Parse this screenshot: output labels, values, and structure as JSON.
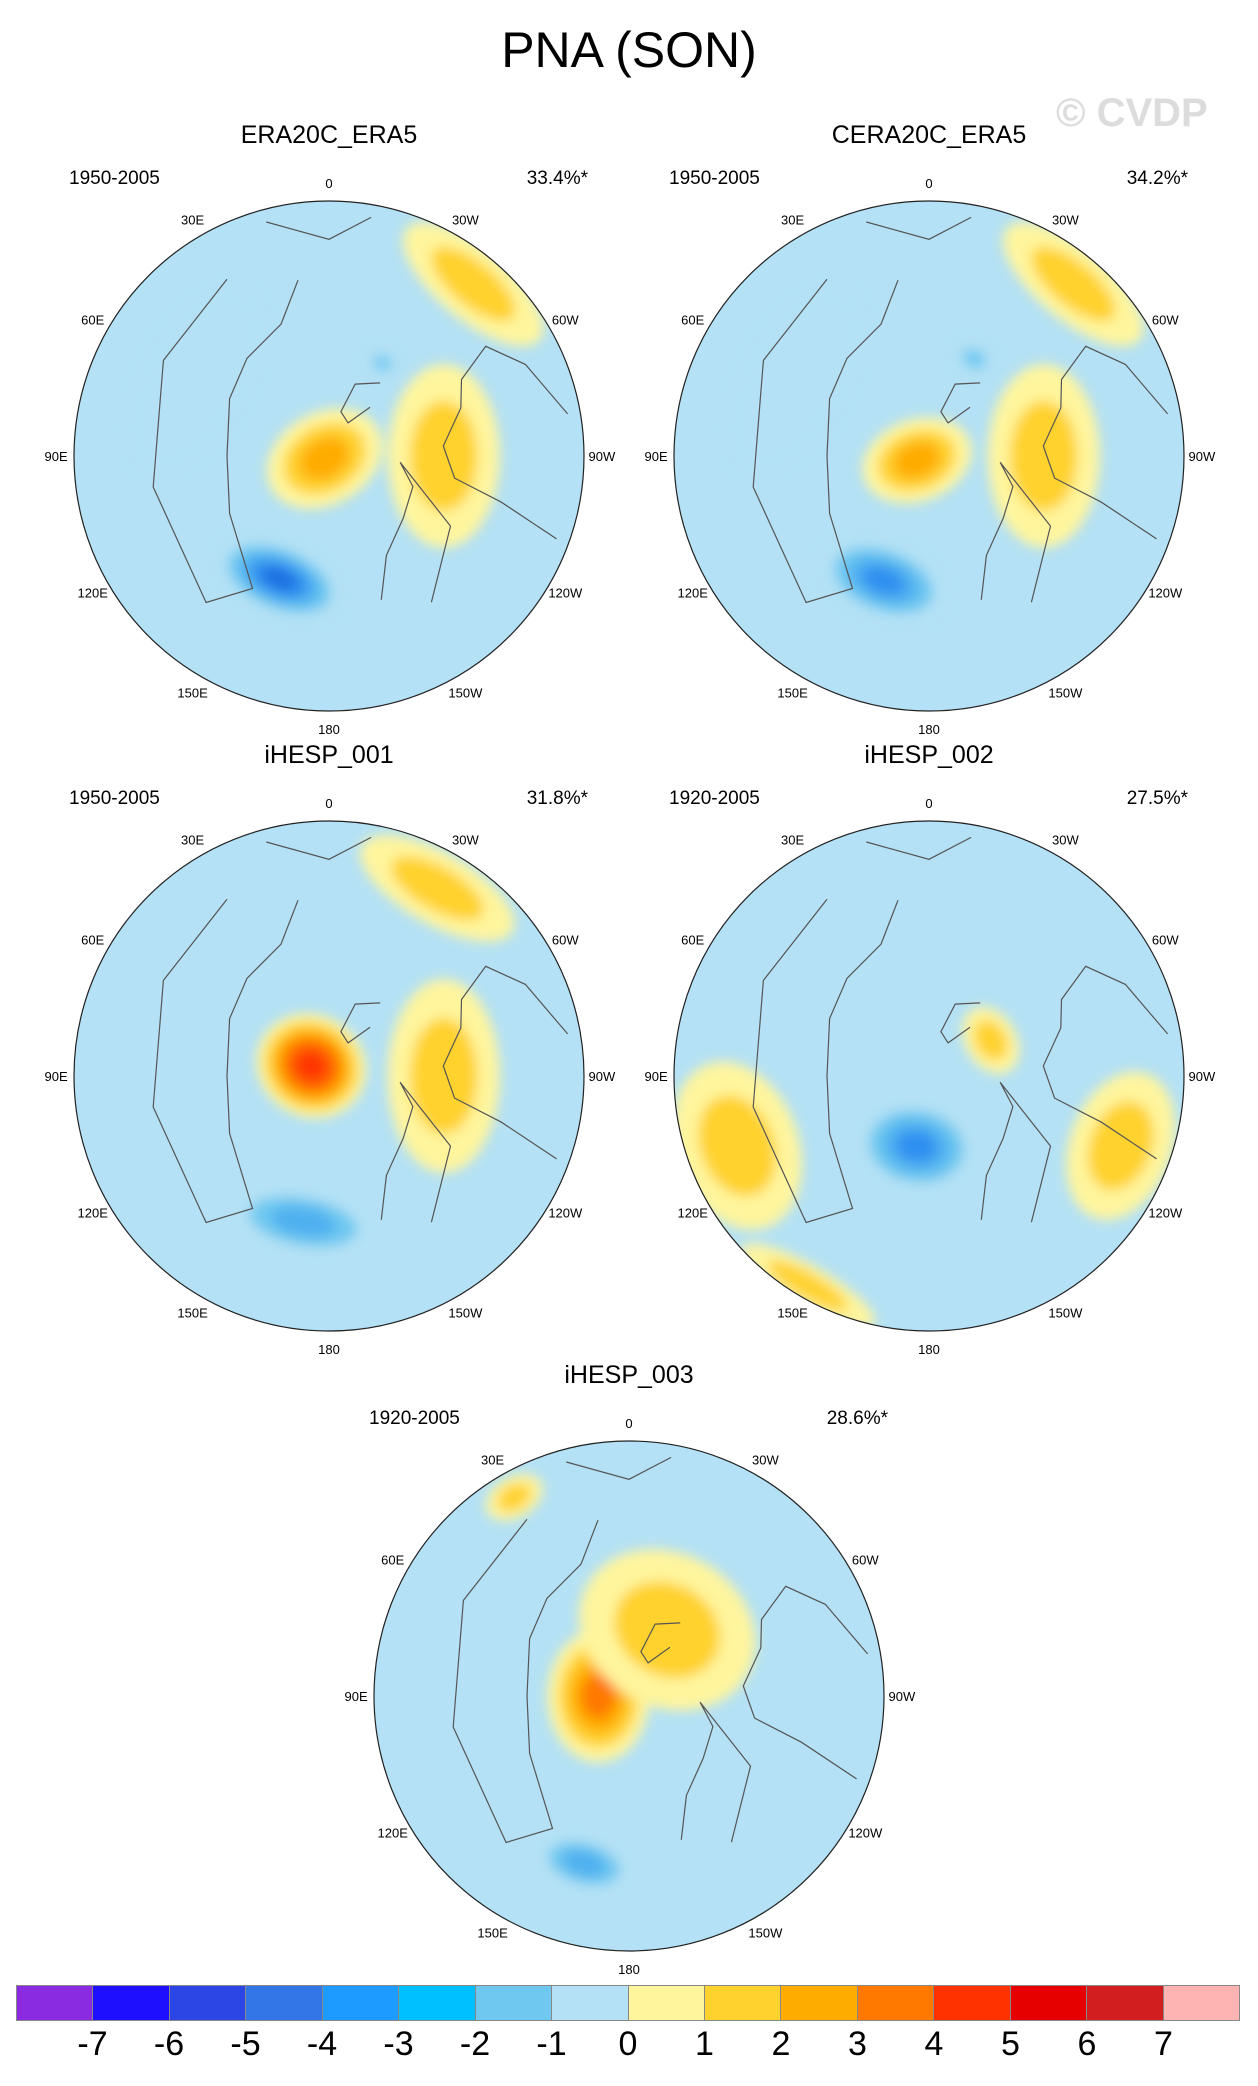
{
  "title": "PNA (SON)",
  "watermark": "© CVDP",
  "lon_labels": [
    "180",
    "150E",
    "120E",
    "90E",
    "60E",
    "30E",
    "0",
    "30W",
    "60W",
    "90W",
    "120W",
    "150W"
  ],
  "panels": [
    {
      "name": "ERA20C_ERA5",
      "period": "1950-2005",
      "pct": "33.4%*",
      "fields": [
        {
          "kind": "low",
          "lon": 158,
          "r": 0.52,
          "strength": 4,
          "w": 0.26,
          "h": 0.14
        },
        {
          "kind": "high",
          "lon": 120,
          "r": 0.02,
          "strength": 2,
          "w": 0.18,
          "h": 0.24
        },
        {
          "kind": "high",
          "lon": 270,
          "r": 0.45,
          "strength": 1,
          "w": 0.36,
          "h": 0.22
        },
        {
          "kind": "high",
          "lon": 320,
          "r": 0.88,
          "strength": 1,
          "w": 0.34,
          "h": 0.14
        },
        {
          "kind": "low",
          "lon": 330,
          "r": 0.42,
          "strength": 1,
          "w": 0.06,
          "h": 0.05
        },
        {
          "kind": "low",
          "lon": 60,
          "r": 0.6,
          "strength": 0,
          "w": 0.4,
          "h": 0.2
        }
      ]
    },
    {
      "name": "CERA20C_ERA5",
      "period": "1950-2005",
      "pct": "34.2%*",
      "fields": [
        {
          "kind": "low",
          "lon": 160,
          "r": 0.52,
          "strength": 3,
          "w": 0.26,
          "h": 0.15
        },
        {
          "kind": "high",
          "lon": 110,
          "r": 0.05,
          "strength": 2,
          "w": 0.16,
          "h": 0.22
        },
        {
          "kind": "high",
          "lon": 270,
          "r": 0.45,
          "strength": 1,
          "w": 0.36,
          "h": 0.22
        },
        {
          "kind": "high",
          "lon": 320,
          "r": 0.88,
          "strength": 1,
          "w": 0.34,
          "h": 0.14
        },
        {
          "kind": "low",
          "lon": 335,
          "r": 0.42,
          "strength": 1,
          "w": 0.08,
          "h": 0.06
        },
        {
          "kind": "low",
          "lon": 60,
          "r": 0.6,
          "strength": 0,
          "w": 0.4,
          "h": 0.2
        }
      ]
    },
    {
      "name": "iHESP_001",
      "period": "1950-2005",
      "pct": "31.8%*",
      "fields": [
        {
          "kind": "low",
          "lon": 170,
          "r": 0.58,
          "strength": 2,
          "w": 0.3,
          "h": 0.13
        },
        {
          "kind": "high",
          "lon": 60,
          "r": 0.08,
          "strength": 5,
          "w": 0.2,
          "h": 0.22
        },
        {
          "kind": "high",
          "lon": 270,
          "r": 0.45,
          "strength": 1,
          "w": 0.38,
          "h": 0.22
        },
        {
          "kind": "high",
          "lon": 330,
          "r": 0.85,
          "strength": 1,
          "w": 0.34,
          "h": 0.14
        },
        {
          "kind": "low",
          "lon": 60,
          "r": 0.62,
          "strength": 0,
          "w": 0.4,
          "h": 0.2
        }
      ]
    },
    {
      "name": "iHESP_002",
      "period": "1920-2005",
      "pct": "27.5%*",
      "fields": [
        {
          "kind": "low",
          "lon": 170,
          "r": 0.28,
          "strength": 3,
          "w": 0.24,
          "h": 0.18
        },
        {
          "kind": "high",
          "lon": 300,
          "r": 0.28,
          "strength": 1,
          "w": 0.14,
          "h": 0.1
        },
        {
          "kind": "high",
          "lon": 250,
          "r": 0.8,
          "strength": 1,
          "w": 0.3,
          "h": 0.2
        },
        {
          "kind": "high",
          "lon": 110,
          "r": 0.8,
          "strength": 1,
          "w": 0.34,
          "h": 0.24
        },
        {
          "kind": "high",
          "lon": 150,
          "r": 0.95,
          "strength": 1,
          "w": 0.3,
          "h": 0.08
        },
        {
          "kind": "low",
          "lon": 20,
          "r": 0.55,
          "strength": 0,
          "w": 0.4,
          "h": 0.22
        }
      ]
    },
    {
      "name": "iHESP_003",
      "period": "1920-2005",
      "pct": "28.6%*",
      "fields": [
        {
          "kind": "low",
          "lon": 165,
          "r": 0.68,
          "strength": 2,
          "w": 0.2,
          "h": 0.11
        },
        {
          "kind": "high",
          "lon": 90,
          "r": 0.12,
          "strength": 3,
          "w": 0.26,
          "h": 0.2
        },
        {
          "kind": "high",
          "lon": 330,
          "r": 0.3,
          "strength": 1,
          "w": 0.36,
          "h": 0.3
        },
        {
          "kind": "high",
          "lon": 30,
          "r": 0.9,
          "strength": 1,
          "w": 0.12,
          "h": 0.08
        }
      ]
    }
  ],
  "colorbar": {
    "labels": [
      "-7",
      "-6",
      "-5",
      "-4",
      "-3",
      "-2",
      "-1",
      "0",
      "1",
      "2",
      "3",
      "4",
      "5",
      "6",
      "7"
    ],
    "colors": [
      "#8a2be2",
      "#1e10ff",
      "#2c46e6",
      "#3276e8",
      "#1e9bff",
      "#00c0ff",
      "#6ec8f0",
      "#b4e1f5",
      "#fff59d",
      "#ffd22d",
      "#ffac00",
      "#ff7800",
      "#ff3200",
      "#e60000",
      "#d21e1e",
      "#ffb4b4"
    ]
  },
  "palette": {
    "neg": [
      "#b4e1f5",
      "#6ec8f0",
      "#4fb0f0",
      "#2e8ff0",
      "#1e6fe0"
    ],
    "pos": [
      "#fff59d",
      "#ffd22d",
      "#ffac00",
      "#ff7800",
      "#ff5000",
      "#ff3200"
    ]
  }
}
